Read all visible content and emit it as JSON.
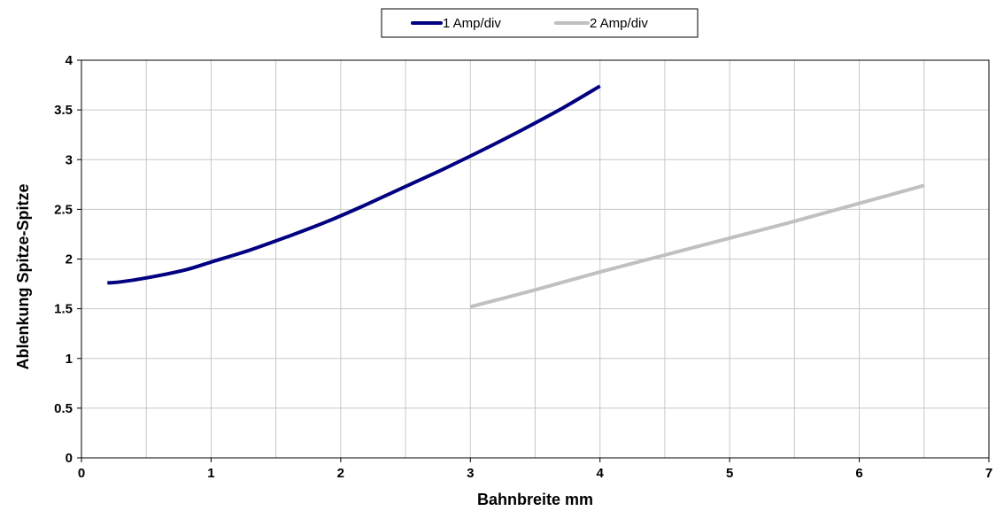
{
  "chart_data": {
    "type": "line",
    "xlabel": "Bahnbreite mm",
    "ylabel": "Ablenkung Spitze-Spitze",
    "xlim": [
      0,
      7
    ],
    "ylim": [
      0,
      4
    ],
    "xticks": [
      0,
      1,
      2,
      3,
      4,
      5,
      6,
      7
    ],
    "yticks": [
      0,
      0.5,
      1,
      1.5,
      2,
      2.5,
      3,
      3.5,
      4
    ],
    "x_minor_step": 0.5,
    "grid": true,
    "legend_position": "top-center",
    "series": [
      {
        "name": "1 Amp/div",
        "color": "#000080",
        "x": [
          0.2,
          0.3,
          0.5,
          0.8,
          1.0,
          1.3,
          1.6,
          1.9,
          2.2,
          2.5,
          2.8,
          3.1,
          3.4,
          3.7,
          4.0
        ],
        "y": [
          1.76,
          1.77,
          1.81,
          1.89,
          1.97,
          2.09,
          2.23,
          2.38,
          2.55,
          2.73,
          2.91,
          3.1,
          3.3,
          3.51,
          3.74
        ]
      },
      {
        "name": "2 Amp/div",
        "color": "#c0c0c0",
        "x": [
          3.0,
          3.5,
          4.0,
          4.5,
          5.0,
          5.5,
          6.0,
          6.5
        ],
        "y": [
          1.52,
          1.69,
          1.87,
          2.04,
          2.21,
          2.38,
          2.56,
          2.74
        ]
      }
    ]
  }
}
